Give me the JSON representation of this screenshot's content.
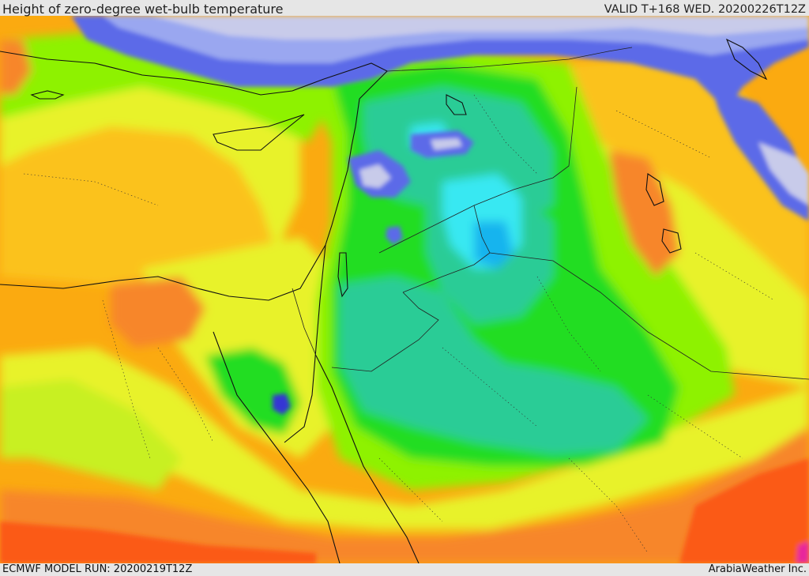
{
  "header": {
    "title": "Height of zero-degree wet-bulb temperature",
    "valid": "VALID T+168 WED. 20200226T12Z"
  },
  "footer": {
    "model_run": "ECMWF MODEL RUN: 20200219T12Z",
    "credit": "ArabiaWeather Inc."
  },
  "palette": {
    "sea_pale": "#c8cbea",
    "blue": "#5b6ae8",
    "dark_blue": "#3434d4",
    "light_blue": "#9aa7f0",
    "cyan": "#38e8f2",
    "deep_cyan": "#12b4ee",
    "teal": "#2ccc96",
    "green": "#22dd22",
    "light_green": "#8ef200",
    "yellow_green": "#c8f024",
    "yellow": "#e8f22a",
    "light_orange": "#fbc21c",
    "orange": "#fbaa10",
    "dark_orange": "#f7862a",
    "red_orange": "#fb5a18",
    "magenta": "#e8289c"
  }
}
